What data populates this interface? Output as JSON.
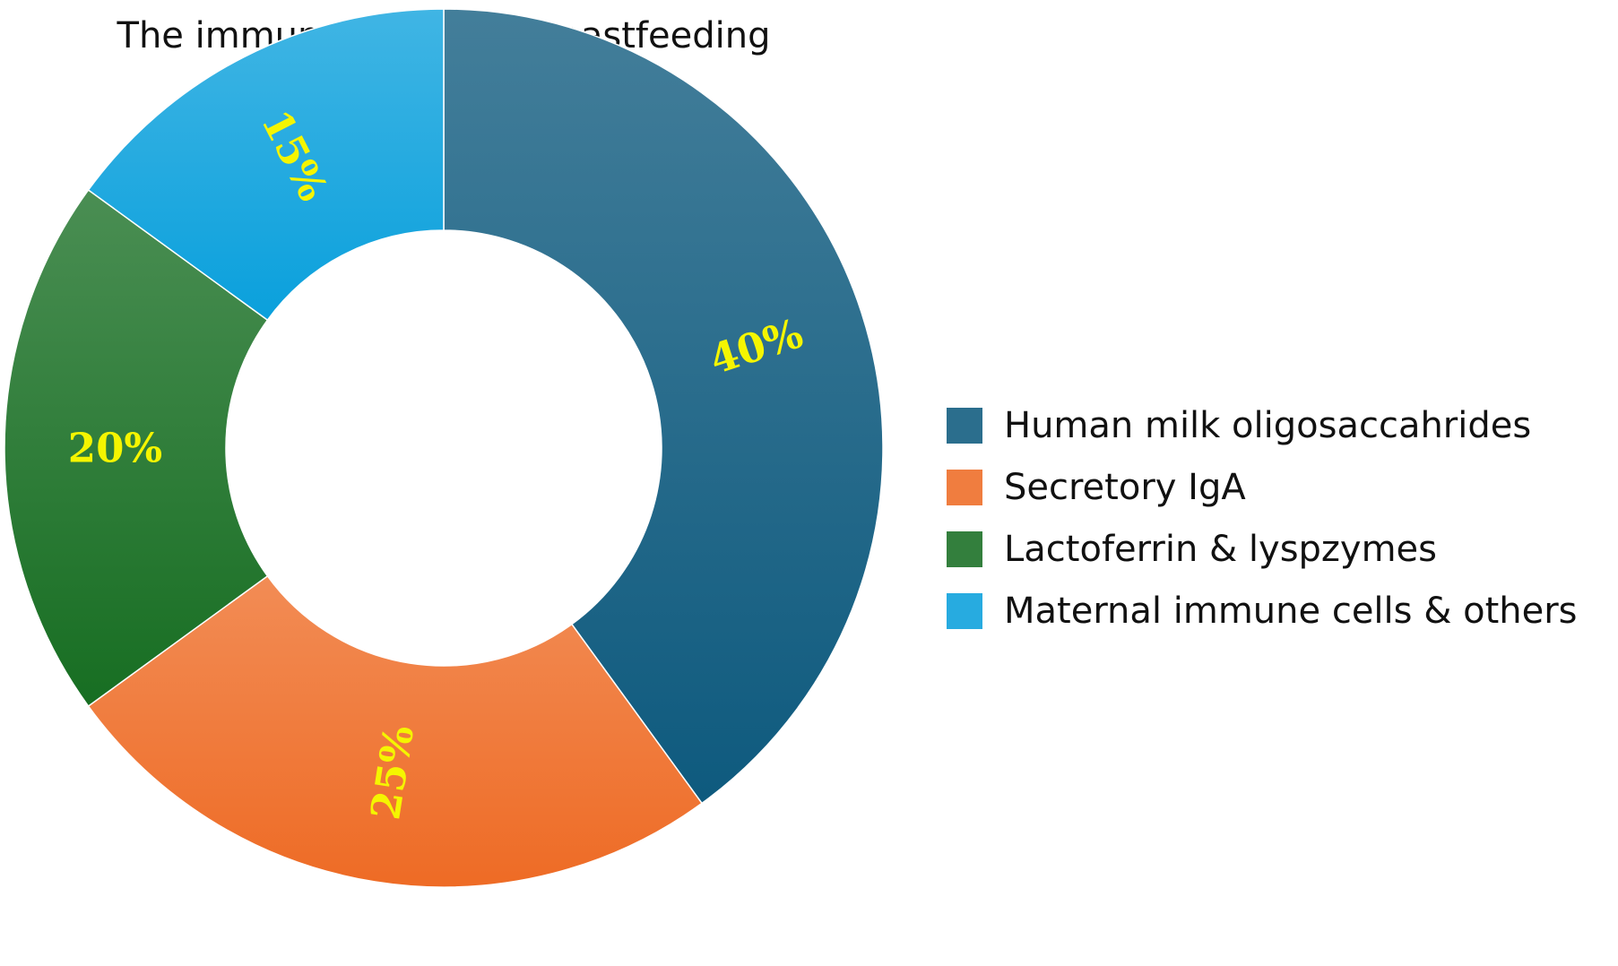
{
  "chart_data": {
    "type": "pie",
    "title": "The immune power of breastfeeding",
    "slices": [
      {
        "label": "Human milk oligosaccahrides",
        "value": 40,
        "display": "40%",
        "color": "#0e5a7e"
      },
      {
        "label": "Secretory IgA",
        "value": 25,
        "display": "25%",
        "color": "#ee6b25"
      },
      {
        "label": "Lactoferrin & lyspzymes",
        "value": 20,
        "display": "20%",
        "color": "#176e22"
      },
      {
        "label": "Maternal immune cells & others",
        "value": 15,
        "display": "15%",
        "color": "#0aa0dc"
      }
    ],
    "legend_placement": "right",
    "label_color": "#f5f500"
  }
}
